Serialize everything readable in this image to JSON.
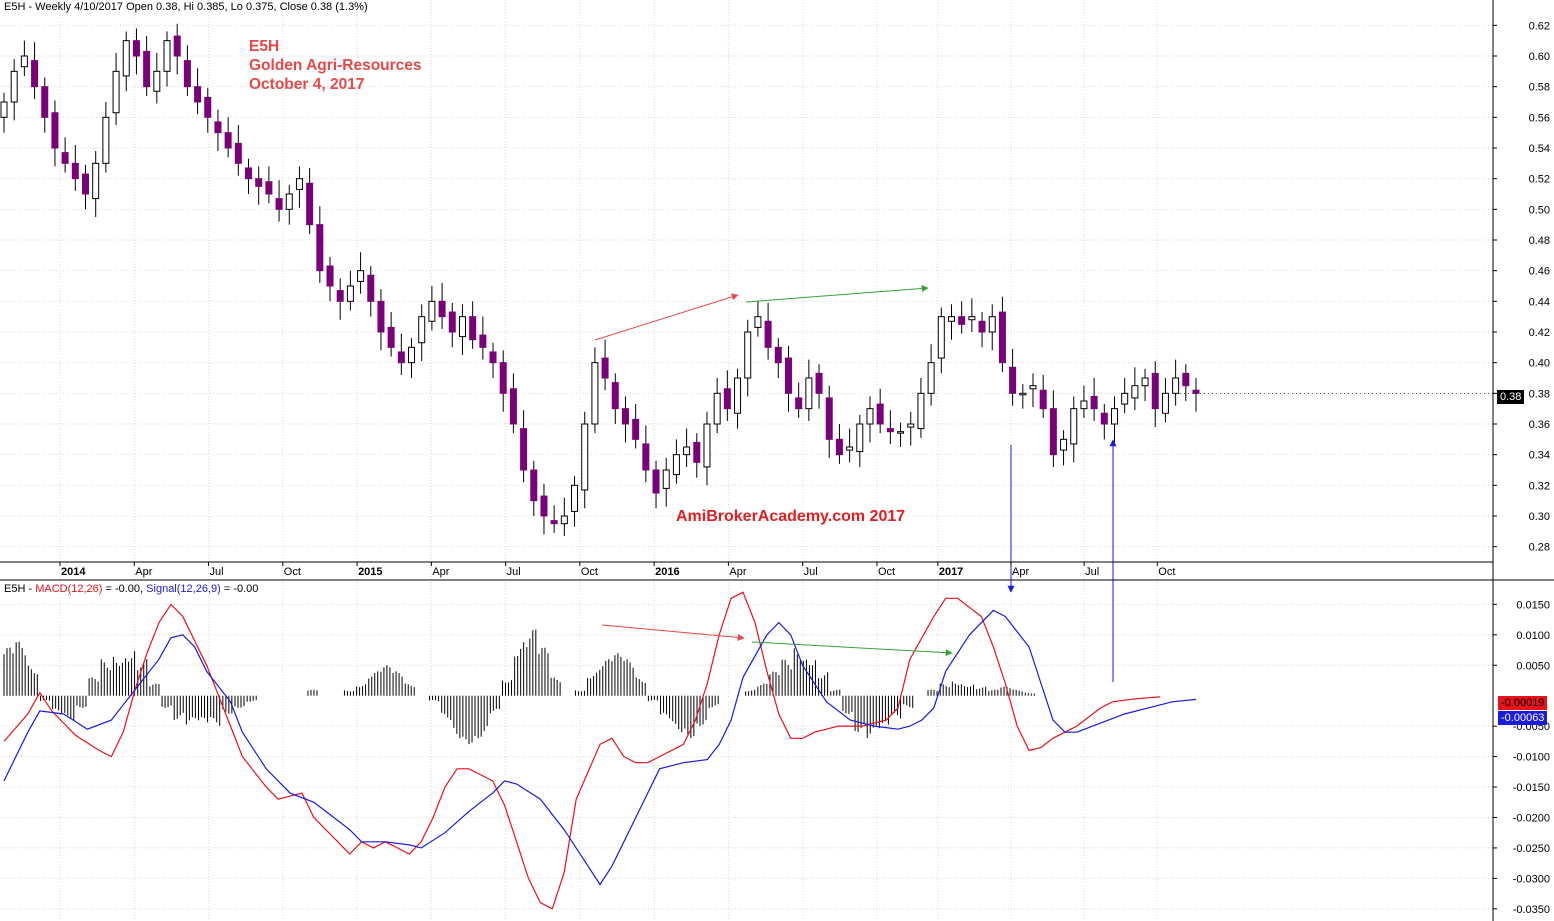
{
  "price_header": "E5H - Weekly 4/10/2017 Open 0.38, Hi 0.385, Lo 0.375, Close 0.38 (1.3%)",
  "macd_header": {
    "prefix": "E5H - ",
    "macd_label": "MACD(12,26)",
    "macd_value": " = -0.00, ",
    "signal_label": "Signal(12,26,9)",
    "signal_value": " = -0.00"
  },
  "annotation": {
    "symbol": "E5H",
    "company": "Golden Agri-Resources",
    "date": "October 4, 2017",
    "watermark": "AmiBrokerAcademy.com  2017"
  },
  "colors": {
    "candle_down": "#7a007a",
    "candle_up_body": "#ffffff",
    "wick": "#000000",
    "macd_line": "#e8121a",
    "signal_line": "#1a1ae0",
    "histogram": "#000000",
    "arrow_red": "#e84848",
    "arrow_green": "#3aa03a",
    "arrow_blue": "#1a1ae0",
    "grid": "#d8d8d8",
    "annotation_text": "#e84848"
  },
  "tags": {
    "last_price": "0.38",
    "macd_last": "-0.00019",
    "signal_last": "-0.00063"
  },
  "chart_data": [
    {
      "type": "candlestick",
      "interval": "weekly",
      "price_axis_ticks": [
        "0.28",
        "0.30",
        "0.32",
        "0.34",
        "0.36",
        "0.38",
        "0.40",
        "0.42",
        "0.44",
        "0.46",
        "0.48",
        "0.50",
        "0.52",
        "0.54",
        "0.56",
        "0.58",
        "0.60",
        "0.62"
      ],
      "ylim": [
        0.27,
        0.63
      ],
      "time_axis_labels": [
        {
          "label": "2014",
          "bold": true
        },
        {
          "label": "Apr"
        },
        {
          "label": "Jul"
        },
        {
          "label": "Oct"
        },
        {
          "label": "2015",
          "bold": true
        },
        {
          "label": "Apr"
        },
        {
          "label": "Jul"
        },
        {
          "label": "Oct"
        },
        {
          "label": "2016",
          "bold": true
        },
        {
          "label": "Apr"
        },
        {
          "label": "Jul"
        },
        {
          "label": "Oct"
        },
        {
          "label": "2017",
          "bold": true
        },
        {
          "label": "Apr"
        },
        {
          "label": "Jul"
        },
        {
          "label": "Oct"
        }
      ],
      "close_path": [
        0.57,
        0.59,
        0.6,
        0.58,
        0.56,
        0.54,
        0.53,
        0.52,
        0.51,
        0.53,
        0.56,
        0.59,
        0.61,
        0.6,
        0.58,
        0.59,
        0.61,
        0.6,
        0.58,
        0.57,
        0.56,
        0.55,
        0.54,
        0.53,
        0.52,
        0.515,
        0.51,
        0.5,
        0.51,
        0.52,
        0.49,
        0.46,
        0.45,
        0.44,
        0.45,
        0.46,
        0.44,
        0.42,
        0.41,
        0.4,
        0.41,
        0.43,
        0.44,
        0.43,
        0.42,
        0.43,
        0.415,
        0.41,
        0.4,
        0.38,
        0.36,
        0.33,
        0.31,
        0.3,
        0.295,
        0.3,
        0.32,
        0.36,
        0.4,
        0.39,
        0.37,
        0.36,
        0.35,
        0.33,
        0.315,
        0.33,
        0.34,
        0.345,
        0.335,
        0.36,
        0.38,
        0.37,
        0.39,
        0.42,
        0.43,
        0.41,
        0.4,
        0.38,
        0.37,
        0.39,
        0.38,
        0.35,
        0.34,
        0.345,
        0.36,
        0.37,
        0.36,
        0.355,
        0.355,
        0.36,
        0.38,
        0.4,
        0.43,
        0.43,
        0.425,
        0.43,
        0.42,
        0.43,
        0.4,
        0.38,
        0.38,
        0.385,
        0.37,
        0.34,
        0.35,
        0.37,
        0.375,
        0.37,
        0.36,
        0.37,
        0.38,
        0.385,
        0.39,
        0.37,
        0.38,
        0.39,
        0.385,
        0.38
      ],
      "last_close": 0.38
    },
    {
      "type": "line",
      "title": "MACD(12,26), Signal(12,26,9)",
      "y_axis_ticks": [
        "-0.0350",
        "-0.0300",
        "-0.0250",
        "-0.0200",
        "-0.0150",
        "-0.0100",
        "-0.0050",
        "0.0050",
        "0.0100",
        "0.0150"
      ],
      "ylim": [
        -0.037,
        0.019
      ],
      "series": [
        {
          "name": "MACD(12,26)",
          "color": "#e8121a",
          "values": [
            -0.0075,
            -0.003,
            0.0005,
            -0.0025,
            -0.0065,
            -0.009,
            -0.01,
            -0.006,
            0.001,
            0.007,
            0.012,
            0.015,
            0.013,
            0.009,
            0.005,
            0.0,
            -0.005,
            -0.01,
            -0.015,
            -0.017,
            -0.016,
            -0.02,
            -0.024,
            -0.026,
            -0.024,
            -0.025,
            -0.024,
            -0.025,
            -0.026,
            -0.024,
            -0.02,
            -0.015,
            -0.012,
            -0.012,
            -0.013,
            -0.014,
            -0.018,
            -0.024,
            -0.03,
            -0.034,
            -0.035,
            -0.029,
            -0.017,
            -0.008,
            -0.007,
            -0.01,
            -0.011,
            -0.011,
            -0.01,
            -0.008,
            -0.004,
            0.002,
            0.01,
            0.016,
            0.017,
            0.012,
            0.004,
            -0.003,
            -0.007,
            -0.007,
            -0.006,
            -0.005,
            -0.005,
            -0.0045,
            -0.004,
            -0.002,
            0.006,
            0.013,
            0.016,
            0.016,
            0.013,
            0.008,
            0.002,
            -0.005,
            -0.009,
            -0.0085,
            -0.007,
            -0.006,
            -0.005,
            -0.0035,
            -0.002,
            -0.001,
            -0.0005,
            -0.0002
          ],
          "x_frac": [
            0.0,
            0.02,
            0.03,
            0.04,
            0.06,
            0.08,
            0.09,
            0.1,
            0.11,
            0.12,
            0.13,
            0.14,
            0.15,
            0.16,
            0.17,
            0.18,
            0.19,
            0.2,
            0.22,
            0.23,
            0.25,
            0.26,
            0.28,
            0.29,
            0.3,
            0.31,
            0.32,
            0.33,
            0.34,
            0.35,
            0.36,
            0.37,
            0.38,
            0.39,
            0.4,
            0.41,
            0.42,
            0.43,
            0.44,
            0.45,
            0.46,
            0.47,
            0.48,
            0.5,
            0.51,
            0.52,
            0.53,
            0.54,
            0.55,
            0.57,
            0.58,
            0.59,
            0.6,
            0.61,
            0.62,
            0.63,
            0.64,
            0.65,
            0.66,
            0.67,
            0.68,
            0.7,
            0.72,
            0.73,
            0.74,
            0.75,
            0.76,
            0.78,
            0.79,
            0.8,
            0.82,
            0.83,
            0.84,
            0.85,
            0.86,
            0.87,
            0.88,
            0.89,
            0.9,
            0.91,
            0.92,
            0.93,
            0.95,
            0.97
          ]
        },
        {
          "name": "Signal(12,26,9)",
          "color": "#1a1ae0",
          "values": [
            -0.014,
            -0.006,
            -0.0025,
            -0.003,
            -0.0055,
            -0.004,
            0.001,
            0.006,
            0.0095,
            0.01,
            0.008,
            0.004,
            -0.001,
            -0.006,
            -0.012,
            -0.016,
            -0.0175,
            -0.019,
            -0.022,
            -0.024,
            -0.024,
            -0.0245,
            -0.025,
            -0.0225,
            -0.019,
            -0.016,
            -0.014,
            -0.0145,
            -0.017,
            -0.022,
            -0.028,
            -0.031,
            -0.028,
            -0.02,
            -0.012,
            -0.011,
            -0.0105,
            -0.008,
            -0.004,
            0.003,
            0.01,
            0.012,
            0.01,
            0.005,
            -0.001,
            -0.004,
            -0.005,
            -0.0055,
            -0.005,
            -0.004,
            -0.002,
            0.004,
            0.01,
            0.014,
            0.013,
            0.008,
            0.002,
            -0.004,
            -0.006,
            -0.006,
            -0.0045,
            -0.003,
            -0.002,
            -0.001,
            -0.0006
          ],
          "x_frac": [
            0.0,
            0.02,
            0.03,
            0.05,
            0.07,
            0.09,
            0.11,
            0.13,
            0.14,
            0.15,
            0.16,
            0.17,
            0.19,
            0.2,
            0.22,
            0.24,
            0.26,
            0.27,
            0.29,
            0.3,
            0.32,
            0.34,
            0.35,
            0.37,
            0.39,
            0.41,
            0.42,
            0.43,
            0.45,
            0.47,
            0.49,
            0.5,
            0.51,
            0.53,
            0.55,
            0.57,
            0.59,
            0.6,
            0.61,
            0.62,
            0.64,
            0.65,
            0.66,
            0.67,
            0.69,
            0.71,
            0.73,
            0.75,
            0.76,
            0.77,
            0.78,
            0.79,
            0.81,
            0.83,
            0.84,
            0.86,
            0.87,
            0.88,
            0.89,
            0.9,
            0.92,
            0.94,
            0.96,
            0.98,
            1.0
          ]
        }
      ],
      "histogram": {
        "name": "MACD - Signal",
        "x_frac": [
          0.0,
          0.01,
          0.02,
          0.03,
          0.04,
          0.05,
          0.06,
          0.07,
          0.08,
          0.09,
          0.1,
          0.11,
          0.12,
          0.13,
          0.14,
          0.15,
          0.16,
          0.17,
          0.18,
          0.19,
          0.2,
          0.21,
          0.22,
          0.23,
          0.24,
          0.25,
          0.26,
          0.27,
          0.28,
          0.29,
          0.3,
          0.31,
          0.32,
          0.33,
          0.34,
          0.35,
          0.36,
          0.37,
          0.38,
          0.39,
          0.4,
          0.41,
          0.42,
          0.43,
          0.44,
          0.45,
          0.46,
          0.47,
          0.48,
          0.49,
          0.5,
          0.51,
          0.52,
          0.53,
          0.54,
          0.55,
          0.56,
          0.57,
          0.58,
          0.59,
          0.6,
          0.61,
          0.62,
          0.63,
          0.64,
          0.65,
          0.66,
          0.67,
          0.68,
          0.69,
          0.7,
          0.71,
          0.72,
          0.73,
          0.74,
          0.75,
          0.76,
          0.77,
          0.78,
          0.79,
          0.8,
          0.81,
          0.82,
          0.83,
          0.84,
          0.85,
          0.86,
          0.87,
          0.88,
          0.89,
          0.9,
          0.91,
          0.92,
          0.93,
          0.94,
          0.95,
          0.96,
          0.97
        ],
        "values": [
          0.008,
          0.009,
          0.005,
          -0.001,
          -0.003,
          -0.004,
          -0.002,
          0.003,
          0.006,
          0.007,
          0.008,
          0.006,
          0.002,
          -0.002,
          -0.004,
          -0.005,
          -0.005,
          -0.005,
          -0.003,
          -0.002,
          -0.001,
          0.0,
          0.0,
          0.0,
          0.0,
          0.001,
          0.0,
          0.0,
          0.001,
          0.002,
          0.004,
          0.005,
          0.004,
          0.002,
          0.0,
          -0.001,
          -0.004,
          -0.007,
          -0.008,
          -0.007,
          -0.003,
          0.003,
          0.009,
          0.011,
          0.008,
          0.003,
          0.0,
          0.001,
          0.004,
          0.006,
          0.007,
          0.006,
          0.003,
          -0.001,
          -0.004,
          -0.006,
          -0.007,
          -0.005,
          -0.002,
          0.0,
          0.0,
          0.001,
          0.002,
          0.004,
          0.006,
          0.008,
          0.007,
          0.004,
          0.001,
          -0.003,
          -0.006,
          -0.007,
          -0.006,
          -0.004,
          -0.002,
          0.0,
          0.001,
          0.002,
          0.0025,
          0.002,
          0.0015,
          0.001,
          0.0015,
          0.001,
          0.0005,
          0.0,
          0.0,
          0.0,
          0.0,
          0.0,
          0.0,
          0.0,
          0.0,
          0.0,
          0.0,
          0.0,
          0.0,
          0.0
        ]
      }
    }
  ]
}
